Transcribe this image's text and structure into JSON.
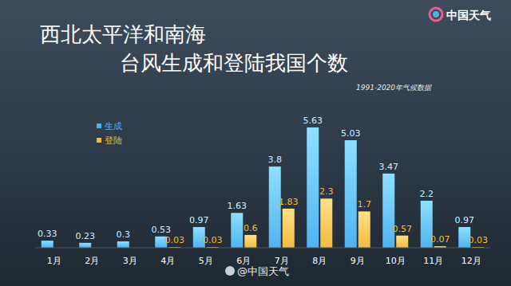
{
  "chart_data": {
    "type": "bar",
    "title": "西北太平洋和南海",
    "subtitle": "台风生成和登陆我国个数",
    "annotations": [
      "1991-2020年气候数据",
      "中国天气",
      "@中国天气"
    ],
    "categories": [
      "1月",
      "2月",
      "3月",
      "4月",
      "5月",
      "6月",
      "7月",
      "8月",
      "9月",
      "10月",
      "11月",
      "12月"
    ],
    "series": [
      {
        "name": "生成",
        "color": "#4fb3f0",
        "values": [
          0.33,
          0.23,
          0.3,
          0.53,
          0.97,
          1.63,
          3.8,
          5.63,
          5.03,
          3.47,
          2.2,
          0.97
        ]
      },
      {
        "name": "登陆",
        "color": "#f2bb3c",
        "values": [
          null,
          null,
          null,
          0.03,
          0.03,
          0.6,
          1.83,
          2.3,
          1.7,
          0.57,
          0.07,
          0.03
        ]
      }
    ],
    "ylim": [
      0,
      6
    ],
    "data_labels": true,
    "tick_labels": "x",
    "legend": "upper left"
  }
}
